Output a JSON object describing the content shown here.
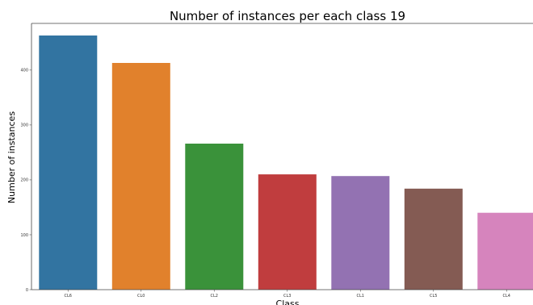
{
  "chart_data": {
    "type": "bar",
    "title": "Number of instances per each class 19",
    "xlabel": "Class",
    "ylabel": "Number of instances",
    "categories": [
      "CL6",
      "CL0",
      "CL2",
      "CL3",
      "CL1",
      "CL5",
      "CL4"
    ],
    "values": [
      463,
      413,
      266,
      210,
      207,
      184,
      140
    ],
    "colors": [
      "#3274a1",
      "#e1812c",
      "#3a923a",
      "#c03d3e",
      "#9372b2",
      "#845b53",
      "#d684bd"
    ],
    "ylim": [
      0,
      485
    ],
    "yticks": [
      0,
      100,
      200,
      300,
      400
    ],
    "grid": false
  }
}
